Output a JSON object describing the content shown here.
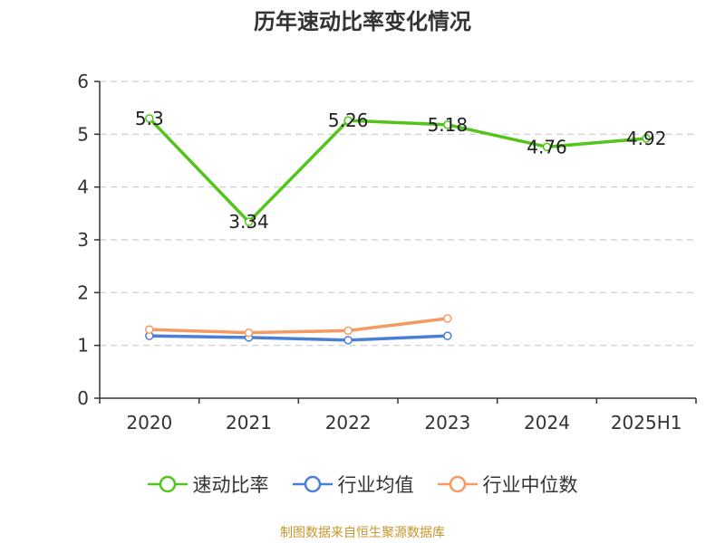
{
  "title": "历年速动比率变化情况",
  "source": "制图数据来自恒生聚源数据库",
  "chart_data": {
    "type": "line",
    "categories": [
      "2020",
      "2021",
      "2022",
      "2023",
      "2024",
      "2025H1"
    ],
    "ylim": [
      0,
      6
    ],
    "yticks": [
      0,
      1,
      2,
      3,
      4,
      5,
      6
    ],
    "grid": true,
    "legend_position": "bottom",
    "series": [
      {
        "name": "速动比率",
        "color": "#52c41a",
        "values": [
          5.3,
          3.34,
          5.26,
          5.18,
          4.76,
          4.92
        ],
        "labels": [
          "5.3",
          "3.34",
          "5.26",
          "5.18",
          "4.76",
          "4.92"
        ]
      },
      {
        "name": "行业均值",
        "color": "#4a7fd8",
        "values": [
          1.18,
          1.15,
          1.1,
          1.18,
          null,
          null
        ]
      },
      {
        "name": "行业中位数",
        "color": "#f59a63",
        "values": [
          1.3,
          1.24,
          1.28,
          1.51,
          null,
          null
        ]
      }
    ]
  }
}
